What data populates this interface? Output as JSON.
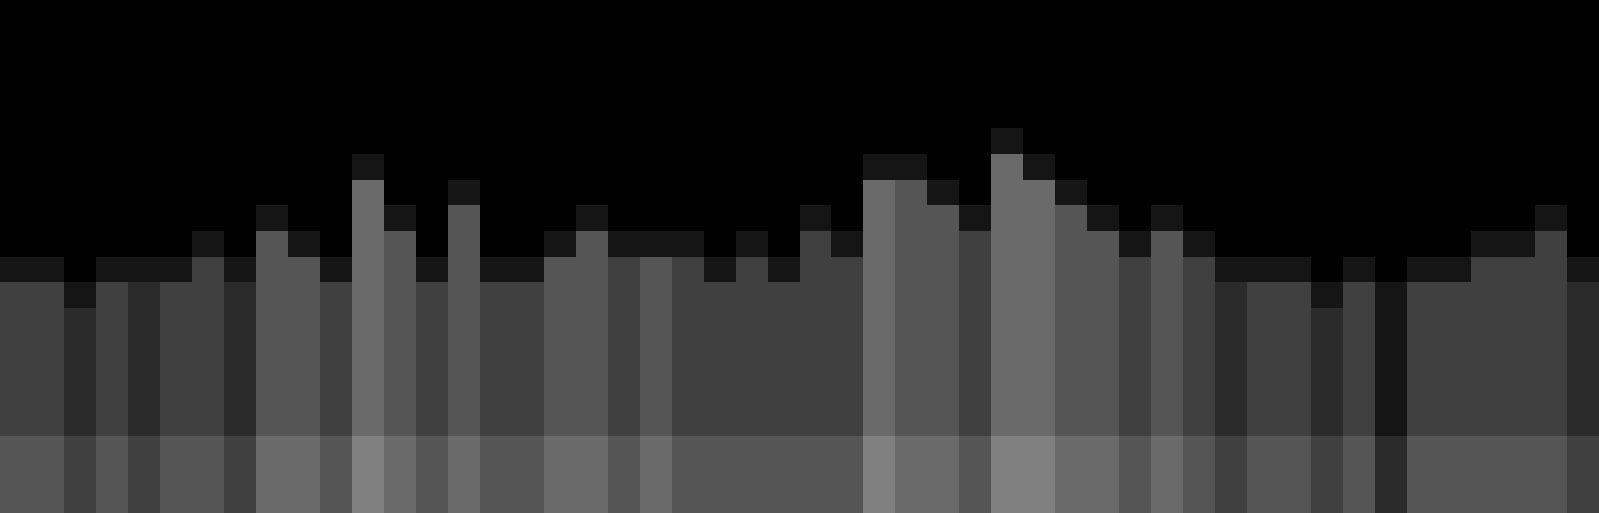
{
  "chart_data": {
    "type": "heatmap",
    "tick_labels": false,
    "grid": false,
    "zlim": [
      0,
      12
    ],
    "color": "#ffffff",
    "cells": [
      [
        0,
        0,
        0,
        0,
        0,
        0,
        0,
        0,
        0,
        0,
        0,
        0,
        0,
        0,
        0,
        0,
        0,
        0,
        0,
        0,
        0,
        0,
        0,
        0,
        0,
        0,
        0,
        0,
        0,
        0,
        0,
        0,
        0,
        0,
        0,
        0,
        0,
        0,
        0,
        0,
        0,
        0,
        0,
        0,
        0,
        0,
        0,
        0,
        0,
        0
      ],
      [
        0,
        0,
        0,
        0,
        0,
        0,
        0,
        0,
        0,
        0,
        0,
        0,
        0,
        0,
        0,
        0,
        0,
        0,
        0,
        0,
        0,
        0,
        0,
        0,
        0,
        0,
        0,
        0,
        0,
        0,
        0,
        0,
        0,
        0,
        0,
        0,
        0,
        0,
        0,
        0,
        0,
        0,
        0,
        0,
        0,
        0,
        0,
        0,
        0,
        0
      ],
      [
        0,
        0,
        0,
        0,
        0,
        0,
        0,
        0,
        0,
        0,
        0,
        0,
        0,
        0,
        0,
        0,
        0,
        0,
        0,
        0,
        0,
        0,
        0,
        0,
        0,
        0,
        0,
        0,
        0,
        0,
        0,
        0,
        0,
        0,
        0,
        0,
        0,
        0,
        0,
        0,
        0,
        0,
        0,
        0,
        0,
        0,
        0,
        0,
        0,
        0
      ],
      [
        0,
        0,
        0,
        0,
        0,
        0,
        0,
        0,
        0,
        0,
        0,
        0,
        0,
        0,
        0,
        0,
        0,
        0,
        0,
        0,
        0,
        0,
        0,
        0,
        0,
        0,
        0,
        0,
        0,
        0,
        0,
        0,
        0,
        0,
        0,
        0,
        0,
        0,
        0,
        0,
        0,
        0,
        0,
        0,
        0,
        0,
        0,
        0,
        0,
        0
      ],
      [
        0,
        0,
        0,
        0,
        0,
        0,
        0,
        0,
        0,
        0,
        0,
        0,
        0,
        0,
        0,
        0,
        0,
        0,
        0,
        0,
        0,
        0,
        0,
        0,
        0,
        0,
        0,
        0,
        0,
        0,
        0,
        0,
        0,
        0,
        0,
        0,
        0,
        0,
        0,
        0,
        0,
        0,
        0,
        0,
        0,
        0,
        0,
        0,
        0,
        0
      ],
      [
        0,
        0,
        0,
        0,
        0,
        0,
        0,
        0,
        0,
        0,
        0,
        0,
        0,
        0,
        0,
        0,
        0,
        0,
        0,
        0,
        0,
        0,
        0,
        0,
        0,
        0,
        0,
        0,
        0,
        0,
        0,
        1,
        0,
        0,
        0,
        0,
        0,
        0,
        0,
        0,
        0,
        0,
        0,
        0,
        0,
        0,
        0,
        0,
        0,
        0
      ],
      [
        0,
        0,
        0,
        0,
        0,
        0,
        0,
        0,
        0,
        0,
        0,
        1,
        0,
        0,
        0,
        0,
        0,
        0,
        0,
        0,
        0,
        0,
        0,
        0,
        0,
        0,
        0,
        1,
        1,
        0,
        0,
        5,
        1,
        0,
        0,
        0,
        0,
        0,
        0,
        0,
        0,
        0,
        0,
        0,
        0,
        0,
        0,
        0,
        0,
        0
      ],
      [
        0,
        0,
        0,
        0,
        0,
        0,
        0,
        0,
        0,
        0,
        0,
        5,
        0,
        0,
        1,
        0,
        0,
        0,
        0,
        0,
        0,
        0,
        0,
        0,
        0,
        0,
        0,
        5,
        4,
        1,
        0,
        5,
        5,
        1,
        0,
        0,
        0,
        0,
        0,
        0,
        0,
        0,
        0,
        0,
        0,
        0,
        0,
        0,
        0,
        0
      ],
      [
        0,
        0,
        0,
        0,
        0,
        0,
        0,
        0,
        1,
        0,
        0,
        5,
        1,
        0,
        4,
        0,
        0,
        0,
        1,
        0,
        0,
        0,
        0,
        0,
        0,
        1,
        0,
        5,
        4,
        4,
        1,
        5,
        5,
        4,
        1,
        0,
        1,
        0,
        0,
        0,
        0,
        0,
        0,
        0,
        0,
        0,
        0,
        0,
        1,
        0
      ],
      [
        0,
        0,
        0,
        0,
        0,
        0,
        1,
        0,
        4,
        1,
        0,
        5,
        4,
        0,
        4,
        0,
        0,
        1,
        4,
        1,
        1,
        1,
        0,
        1,
        0,
        3,
        1,
        5,
        4,
        4,
        3,
        5,
        5,
        4,
        4,
        1,
        4,
        1,
        0,
        0,
        0,
        0,
        0,
        0,
        0,
        0,
        1,
        1,
        3,
        0
      ],
      [
        1,
        1,
        0,
        1,
        1,
        1,
        3,
        1,
        4,
        4,
        1,
        5,
        4,
        1,
        4,
        1,
        1,
        4,
        4,
        3,
        4,
        3,
        1,
        3,
        1,
        3,
        3,
        5,
        4,
        4,
        3,
        5,
        5,
        4,
        4,
        3,
        4,
        3,
        1,
        1,
        1,
        0,
        1,
        0,
        1,
        1,
        3,
        3,
        3,
        1
      ],
      [
        3,
        3,
        1,
        3,
        2,
        3,
        3,
        2,
        4,
        4,
        3,
        5,
        4,
        3,
        4,
        3,
        3,
        4,
        4,
        3,
        4,
        3,
        3,
        3,
        3,
        3,
        3,
        5,
        4,
        4,
        3,
        5,
        5,
        4,
        4,
        3,
        4,
        3,
        2,
        3,
        3,
        1,
        3,
        1,
        3,
        3,
        3,
        3,
        3,
        2
      ],
      [
        3,
        3,
        2,
        3,
        2,
        3,
        3,
        2,
        4,
        4,
        3,
        5,
        4,
        3,
        4,
        3,
        3,
        4,
        4,
        3,
        4,
        3,
        3,
        3,
        3,
        3,
        3,
        5,
        4,
        4,
        3,
        5,
        5,
        4,
        4,
        3,
        4,
        3,
        2,
        3,
        3,
        2,
        3,
        1,
        3,
        3,
        3,
        3,
        3,
        2
      ],
      [
        3,
        3,
        2,
        3,
        2,
        3,
        3,
        2,
        4,
        4,
        3,
        5,
        4,
        3,
        4,
        3,
        3,
        4,
        4,
        3,
        4,
        3,
        3,
        3,
        3,
        3,
        3,
        5,
        4,
        4,
        3,
        5,
        5,
        4,
        4,
        3,
        4,
        3,
        2,
        3,
        3,
        2,
        3,
        1,
        3,
        3,
        3,
        3,
        3,
        2
      ],
      [
        3,
        3,
        2,
        3,
        2,
        3,
        3,
        2,
        4,
        4,
        3,
        5,
        4,
        3,
        4,
        3,
        3,
        4,
        4,
        3,
        4,
        3,
        3,
        3,
        3,
        3,
        3,
        5,
        4,
        4,
        3,
        5,
        5,
        4,
        4,
        3,
        4,
        3,
        2,
        3,
        3,
        2,
        3,
        1,
        3,
        3,
        3,
        3,
        3,
        2
      ],
      [
        3,
        3,
        2,
        3,
        2,
        3,
        3,
        2,
        4,
        4,
        3,
        5,
        4,
        3,
        4,
        3,
        3,
        4,
        4,
        3,
        4,
        3,
        3,
        3,
        3,
        3,
        3,
        5,
        4,
        4,
        3,
        5,
        5,
        4,
        4,
        3,
        4,
        3,
        2,
        3,
        3,
        2,
        3,
        1,
        3,
        3,
        3,
        3,
        3,
        2
      ],
      [
        3,
        3,
        2,
        3,
        2,
        3,
        3,
        2,
        4,
        4,
        3,
        5,
        4,
        3,
        4,
        3,
        3,
        4,
        4,
        3,
        4,
        3,
        3,
        3,
        3,
        3,
        3,
        5,
        4,
        4,
        3,
        5,
        5,
        4,
        4,
        3,
        4,
        3,
        2,
        3,
        3,
        2,
        3,
        1,
        3,
        3,
        3,
        3,
        3,
        2
      ],
      [
        4,
        4,
        3,
        4,
        3,
        4,
        4,
        3,
        5,
        5,
        4,
        6,
        5,
        4,
        5,
        4,
        4,
        5,
        5,
        4,
        5,
        4,
        4,
        4,
        4,
        4,
        4,
        6,
        5,
        5,
        4,
        6,
        6,
        5,
        5,
        4,
        5,
        4,
        3,
        4,
        4,
        3,
        4,
        2,
        4,
        4,
        4,
        4,
        4,
        3
      ],
      [
        4,
        4,
        3,
        4,
        3,
        4,
        4,
        3,
        5,
        5,
        4,
        6,
        5,
        4,
        5,
        4,
        4,
        5,
        5,
        4,
        5,
        4,
        4,
        4,
        4,
        4,
        4,
        6,
        5,
        5,
        4,
        6,
        6,
        5,
        5,
        4,
        5,
        4,
        3,
        4,
        4,
        3,
        4,
        2,
        4,
        4,
        4,
        4,
        4,
        3
      ],
      [
        4,
        4,
        3,
        4,
        3,
        4,
        4,
        3,
        5,
        5,
        4,
        6,
        5,
        4,
        5,
        4,
        4,
        5,
        5,
        4,
        5,
        4,
        4,
        4,
        4,
        4,
        4,
        6,
        5,
        5,
        4,
        6,
        6,
        5,
        5,
        4,
        5,
        4,
        3,
        4,
        4,
        3,
        4,
        2,
        4,
        4,
        4,
        4,
        4,
        3
      ]
    ]
  }
}
